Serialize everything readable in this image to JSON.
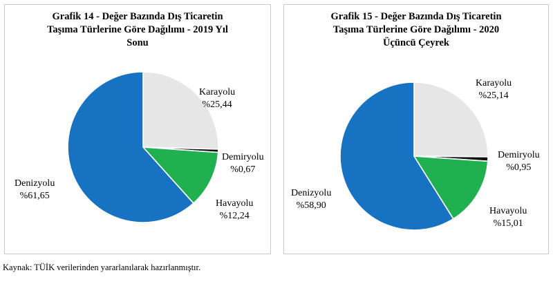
{
  "source_note": "Kaynak: TÜİK verilerinden yararlanılarak hazırlanmıştır.",
  "chart_data": [
    {
      "type": "pie",
      "title_lines": [
        "Grafik 14 - Değer Bazında Dış Ticaretin",
        "Taşıma Türlerine Göre Dağılımı - 2019 Yıl",
        "Sonu"
      ],
      "slices": [
        {
          "name": "Karayolu",
          "value": 25.44,
          "value_label": "%25,44",
          "color": "#e6e6e6"
        },
        {
          "name": "Demiryolu",
          "value": 0.67,
          "value_label": "%0,67",
          "color": "#111111"
        },
        {
          "name": "Havayolu",
          "value": 12.24,
          "value_label": "%12,24",
          "color": "#21b050"
        },
        {
          "name": "Denizyolu",
          "value": 61.65,
          "value_label": "%61,65",
          "color": "#1872c2"
        }
      ]
    },
    {
      "type": "pie",
      "title_lines": [
        "Grafik 15 - Değer Bazında Dış Ticaretin",
        "Taşıma Türlerine Göre Dağılımı - 2020",
        "Üçüncü Çeyrek"
      ],
      "slices": [
        {
          "name": "Karayolu",
          "value": 25.14,
          "value_label": "%25,14",
          "color": "#e6e6e6"
        },
        {
          "name": "Demiryolu",
          "value": 0.95,
          "value_label": "%0,95",
          "color": "#111111"
        },
        {
          "name": "Havayolu",
          "value": 15.01,
          "value_label": "%15,01",
          "color": "#21b050"
        },
        {
          "name": "Denizyolu",
          "value": 58.9,
          "value_label": "%58,90",
          "color": "#1872c2"
        }
      ]
    }
  ]
}
